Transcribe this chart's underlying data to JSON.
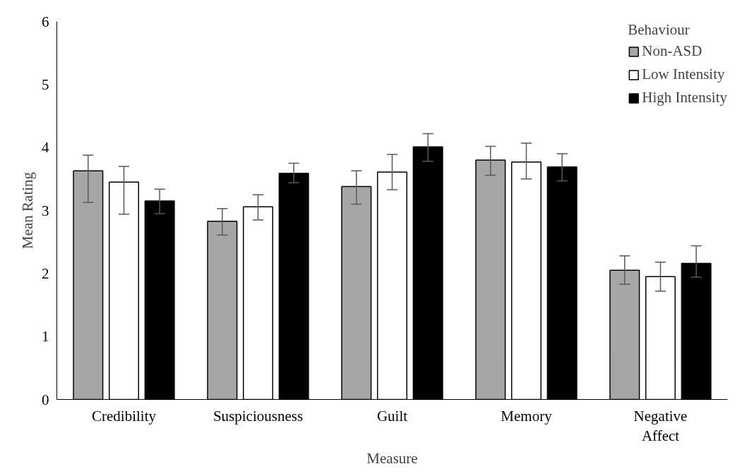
{
  "chart_data": {
    "type": "bar",
    "xlabel": "Measure",
    "ylabel": "Mean Rating",
    "legend_title": "Behaviour",
    "categories": [
      "Credibility",
      "Suspiciousness",
      "Guilt",
      "Memory",
      "Negative Affect"
    ],
    "series": [
      {
        "name": "Non-ASD",
        "color": "#a6a6a6",
        "values": [
          3.63,
          2.83,
          3.38,
          3.8,
          2.05
        ],
        "errors": [
          [
            3.13,
            3.88
          ],
          [
            2.61,
            3.03
          ],
          [
            3.1,
            3.63
          ],
          [
            3.56,
            4.02
          ],
          [
            1.83,
            2.28
          ]
        ]
      },
      {
        "name": "Low Intensity",
        "color": "#ffffff",
        "values": [
          3.45,
          3.06,
          3.61,
          3.77,
          1.95
        ],
        "errors": [
          [
            2.94,
            3.7
          ],
          [
            2.85,
            3.25
          ],
          [
            3.33,
            3.89
          ],
          [
            3.5,
            4.07
          ],
          [
            1.72,
            2.18
          ]
        ]
      },
      {
        "name": "High Intensity",
        "color": "#000000",
        "values": [
          3.15,
          3.59,
          4.01,
          3.69,
          2.16
        ],
        "errors": [
          [
            2.95,
            3.34
          ],
          [
            3.44,
            3.75
          ],
          [
            3.78,
            4.22
          ],
          [
            3.47,
            3.9
          ],
          [
            1.94,
            2.44
          ]
        ]
      }
    ],
    "ylim": [
      0,
      6
    ],
    "yticks": [
      0,
      1,
      2,
      3,
      4,
      5,
      6
    ],
    "grid": false,
    "legend": "top right"
  }
}
